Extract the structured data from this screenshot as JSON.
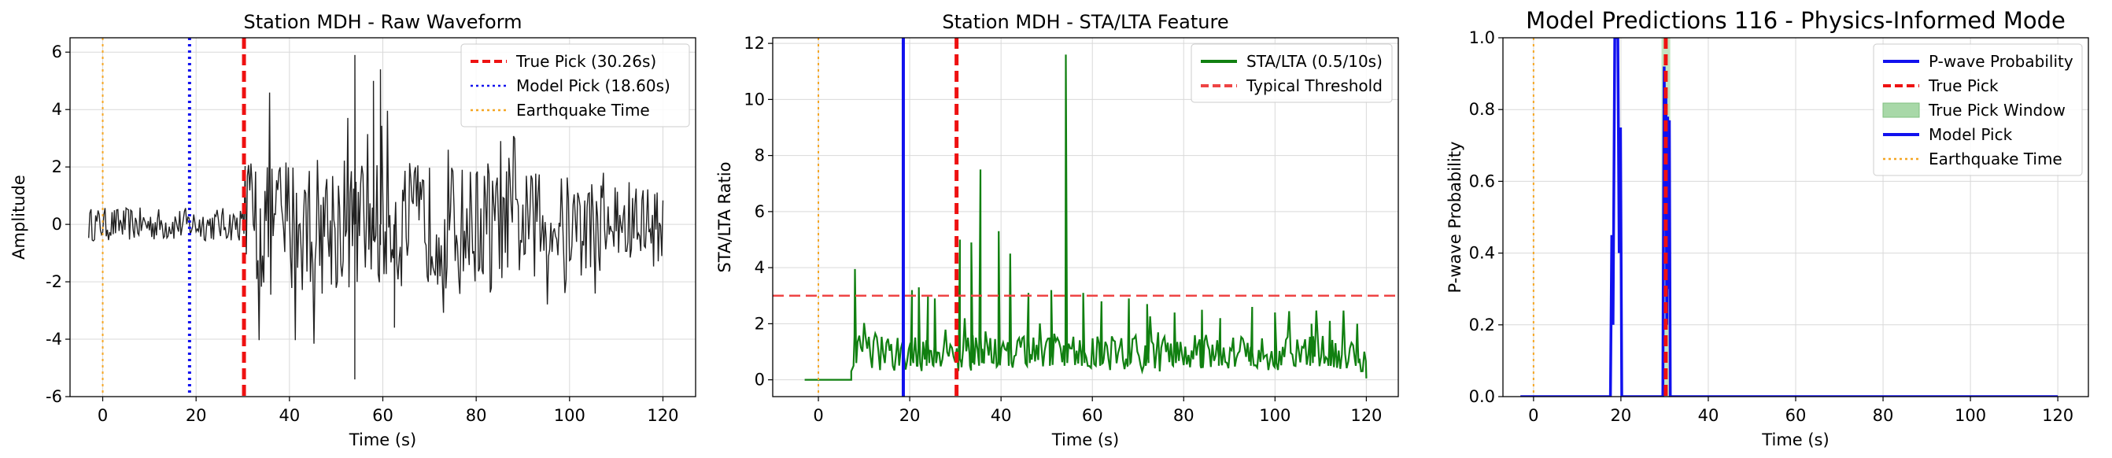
{
  "chart_data": [
    {
      "type": "line",
      "title": "Station MDH - Raw Waveform",
      "xlabel": "Time (s)",
      "ylabel": "Amplitude",
      "xlim": [
        -7,
        127
      ],
      "ylim": [
        -6,
        6.5
      ],
      "xticks": [
        0,
        20,
        40,
        60,
        80,
        100,
        120
      ],
      "yticks": [
        -6,
        -4,
        -2,
        0,
        2,
        4,
        6
      ],
      "grid": true,
      "legend_position": "top-right",
      "series": [
        {
          "name": "",
          "color": "#222222",
          "kind": "waveform",
          "x_start": -3,
          "x_end": 120,
          "pick": 30.26,
          "noise_amp": 0.42,
          "signal_amp": 1.9,
          "spike_x": [
            54,
            58,
            59.5,
            62.5
          ],
          "spike_y": [
            -5.4,
            5.0,
            5.4,
            -3.6
          ],
          "top_spike_x": 54,
          "top_spike_y": 5.9
        }
      ],
      "vlines": [
        {
          "name": "True Pick (30.26s)",
          "x": 30.26,
          "color": "#ee1111",
          "style": "dashed",
          "width": 5
        },
        {
          "name": "Model Pick (18.60s)",
          "x": 18.6,
          "color": "#1111ee",
          "style": "dotted",
          "width": 4
        },
        {
          "name": "Earthquake Time",
          "x": 0,
          "color": "#f5a623",
          "style": "dotted",
          "width": 2
        }
      ]
    },
    {
      "type": "line",
      "title": "Station MDH - STA/LTA Feature",
      "xlabel": "Time (s)",
      "ylabel": "STA/LTA Ratio",
      "xlim": [
        -10,
        127
      ],
      "ylim": [
        -0.6,
        12.2
      ],
      "xticks": [
        0,
        20,
        40,
        60,
        80,
        100,
        120
      ],
      "yticks": [
        0,
        2,
        4,
        6,
        8,
        10,
        12
      ],
      "grid": true,
      "legend_position": "top-right",
      "series": [
        {
          "name": "STA/LTA (0.5/10s)",
          "color": "#118011",
          "kind": "stalta",
          "x_start": -3,
          "x_end": 120,
          "onset": 7.2,
          "peaks_x": [
            8,
            20.5,
            22,
            24,
            25.5,
            31,
            33.5,
            35.5,
            39.5,
            42,
            46,
            51,
            54.2,
            58,
            62,
            68,
            72,
            78,
            84,
            88,
            95,
            100,
            108,
            112,
            118
          ],
          "peaks_y": [
            3.95,
            3.2,
            3.3,
            3.0,
            2.9,
            5.0,
            4.9,
            7.5,
            5.3,
            4.5,
            3.1,
            3.2,
            11.6,
            3.1,
            2.8,
            2.9,
            2.7,
            2.4,
            2.5,
            2.2,
            2.6,
            2.4,
            2.0,
            2.1,
            2.0
          ]
        }
      ],
      "hlines": [
        {
          "name": "Typical Threshold",
          "y": 3,
          "color": "#ee4444",
          "style": "dashed",
          "width": 2.5
        }
      ],
      "vlines": [
        {
          "name": "",
          "x": 18.6,
          "color": "#1111ee",
          "style": "solid",
          "width": 4
        },
        {
          "name": "",
          "x": 30.26,
          "color": "#ee1111",
          "style": "dashed",
          "width": 5
        },
        {
          "name": "",
          "x": 0,
          "color": "#f5a623",
          "style": "dotted",
          "width": 2
        }
      ]
    },
    {
      "type": "line",
      "title": "Model Predictions 116 - Physics-Informed Mode",
      "xlabel": "Time (s)",
      "ylabel": "P-wave Probability",
      "xlim": [
        -7,
        127
      ],
      "ylim": [
        0,
        1
      ],
      "xticks": [
        0,
        20,
        40,
        60,
        80,
        100,
        120
      ],
      "yticks": [
        0.0,
        0.2,
        0.4,
        0.6,
        0.8,
        1.0
      ],
      "grid": true,
      "legend_position": "top-right",
      "series": [
        {
          "name": "P-wave Probability",
          "color": "#1111ee",
          "kind": "prob",
          "x_start": -3,
          "x_end": 120,
          "segments": [
            [
              17.6,
              0
            ],
            [
              17.9,
              0.45
            ],
            [
              18.2,
              0.2
            ],
            [
              18.6,
              1.0
            ],
            [
              19.3,
              1.0
            ],
            [
              19.6,
              0.4
            ],
            [
              19.9,
              0.75
            ],
            [
              20.2,
              0
            ],
            [
              29.6,
              0
            ],
            [
              29.9,
              0.92
            ],
            [
              30.1,
              0.6
            ],
            [
              30.3,
              0.85
            ],
            [
              30.5,
              0.2
            ],
            [
              30.7,
              0.78
            ],
            [
              30.9,
              0.3
            ],
            [
              31.1,
              0.77
            ],
            [
              31.3,
              0
            ]
          ]
        }
      ],
      "legend_entries": [
        {
          "name": "P-wave Probability",
          "color": "#1111ee",
          "style": "solid"
        },
        {
          "name": "True Pick",
          "color": "#ee1111",
          "style": "dashed"
        },
        {
          "name": "True Pick Window",
          "color": "#a8d8a8",
          "style": "patch"
        },
        {
          "name": "Model Pick",
          "color": "#1111ee",
          "style": "solid"
        },
        {
          "name": "Earthquake Time",
          "color": "#f5a623",
          "style": "dotted"
        }
      ],
      "window": {
        "x0": 29.3,
        "x1": 31.3,
        "color": "#a8d8a8"
      },
      "vlines": [
        {
          "name": "",
          "x": 30.26,
          "color": "#ee1111",
          "style": "dashed",
          "width": 5
        },
        {
          "name": "",
          "x": 0,
          "color": "#f5a623",
          "style": "dotted",
          "width": 2
        }
      ]
    }
  ]
}
